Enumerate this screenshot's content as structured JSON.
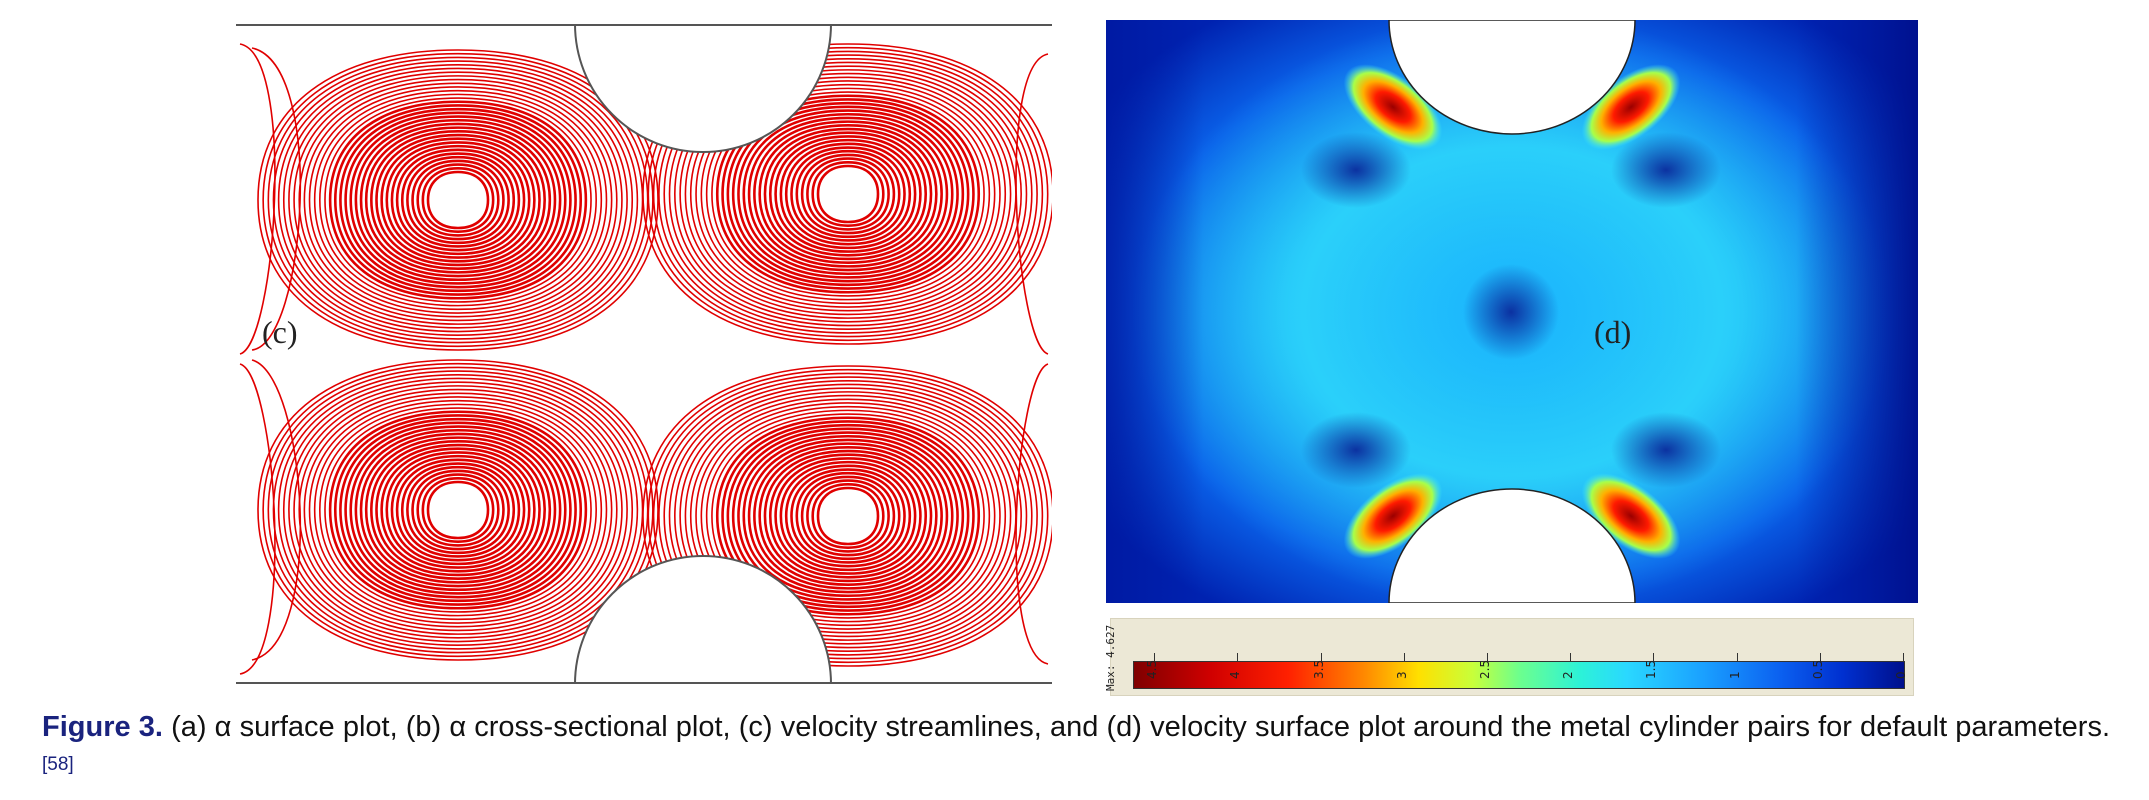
{
  "panel_c": {
    "label": "(c)"
  },
  "panel_d": {
    "label": "(d)"
  },
  "colorbar": {
    "max_label": "Max: 4.627",
    "ticks": [
      "4.5",
      "4",
      "3.5",
      "3",
      "2.5",
      "2",
      "1.5",
      "1",
      "0.5",
      "0"
    ],
    "tick_values": [
      4.5,
      4,
      3.5,
      3,
      2.5,
      2,
      1.5,
      1,
      0.5,
      0
    ],
    "min": 0,
    "max": 4.627
  },
  "colors": {
    "streamline": "#e00000",
    "caption_blue": "#1a237e"
  },
  "caption": {
    "figure": "Figure 3.",
    "text": " (a) α surface plot, (b) α cross-sectional plot, (c) velocity streamlines, and (d) velocity surface plot around the metal cylinder pairs for default parameters.",
    "ref": "[58]"
  }
}
